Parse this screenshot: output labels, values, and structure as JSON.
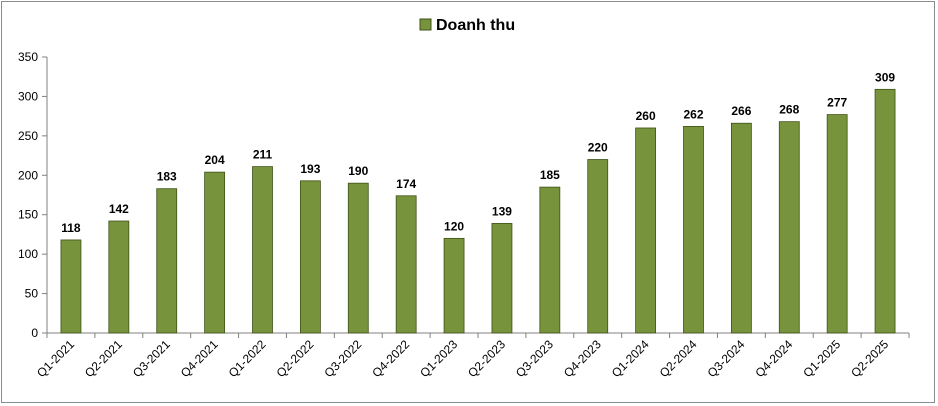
{
  "chart_data": {
    "type": "bar",
    "categories": [
      "Q1-2021",
      "Q2-2021",
      "Q3-2021",
      "Q4-2021",
      "Q1-2022",
      "Q2-2022",
      "Q3-2022",
      "Q4-2022",
      "Q1-2023",
      "Q2-2023",
      "Q3-2023",
      "Q4-2023",
      "Q1-2024",
      "Q2-2024",
      "Q3-2024",
      "Q4-2024",
      "Q1-2025",
      "Q2-2025"
    ],
    "series": [
      {
        "name": "Doanh thu",
        "values": [
          118,
          142,
          183,
          204,
          211,
          193,
          190,
          174,
          120,
          139,
          185,
          220,
          260,
          262,
          266,
          268,
          277,
          309
        ]
      }
    ],
    "ylim": [
      0,
      350
    ],
    "yticks": [
      0,
      50,
      100,
      150,
      200,
      250,
      300,
      350
    ],
    "grid": false,
    "legend": "top-center",
    "data_labels": true,
    "colors": {
      "bar_fill": "#77933c",
      "bar_stroke": "#3f5217",
      "axis": "#808080"
    }
  }
}
